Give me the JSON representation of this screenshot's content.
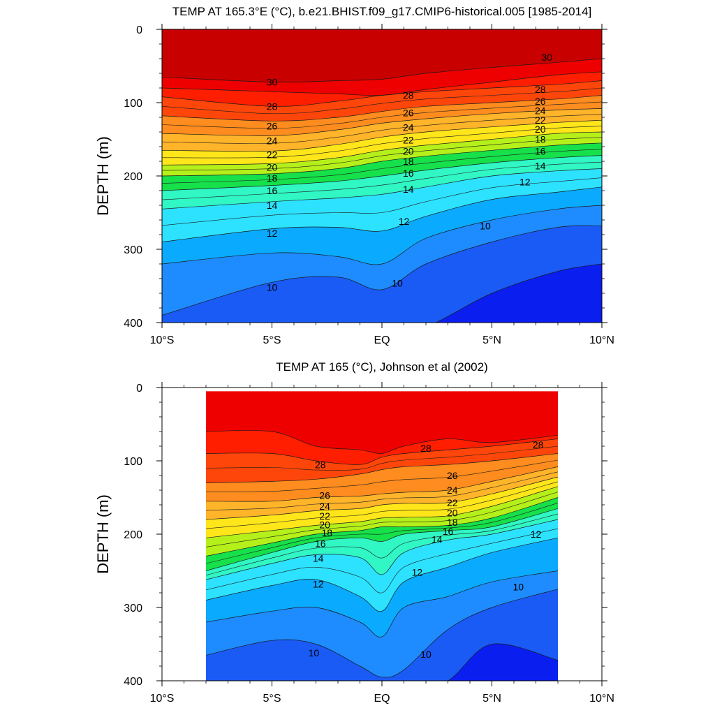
{
  "chart_data": [
    {
      "type": "heatmap",
      "title": "TEMP AT 165.3°E (°C), b.e21.BHIST.f09_g17.CMIP6-historical.005 [1985-2014]",
      "ylabel": "DEPTH (m)",
      "xlabel": "",
      "xlim": [
        -10,
        10
      ],
      "ylim": [
        400,
        0
      ],
      "data_xlim": [
        -10,
        10
      ],
      "data_ylim": [
        0,
        400
      ],
      "x_ticks": [
        "10°S",
        "5°S",
        "EQ",
        "5°N",
        "10°N"
      ],
      "y_ticks": [
        "0",
        "100",
        "200",
        "300",
        "400"
      ],
      "contour_interval": 1,
      "isotherm_depths": {
        "x": [
          -10,
          -5,
          -2,
          0,
          2,
          5,
          8,
          10
        ],
        "levels": [
          {
            "t": 30,
            "z": [
              65,
              72,
              70,
              68,
              60,
              52,
              45,
              40
            ]
          },
          {
            "t": 29,
            "z": [
              80,
              85,
              88,
              90,
              82,
              72,
              62,
              58
            ]
          },
          {
            "t": 28,
            "z": [
              92,
              105,
              98,
              90,
              85,
              80,
              75,
              70
            ]
          },
          {
            "t": 26,
            "z": [
              118,
              125,
              120,
              112,
              105,
              100,
              95,
              90
            ]
          },
          {
            "t": 24,
            "z": [
              142,
              145,
              137,
              128,
              122,
              115,
              110,
              108
            ]
          },
          {
            "t": 22,
            "z": [
              165,
              166,
              157,
              147,
              140,
              133,
              127,
              124
            ]
          },
          {
            "t": 20,
            "z": [
              185,
              183,
              175,
              165,
              158,
              150,
              142,
              140
            ]
          },
          {
            "t": 18,
            "z": [
              200,
              197,
              190,
              180,
              173,
              165,
              158,
              155
            ]
          },
          {
            "t": 16,
            "z": [
              220,
              213,
              207,
              200,
              192,
              182,
              175,
              172
            ]
          },
          {
            "t": 14,
            "z": [
              245,
              235,
              230,
              225,
              215,
              200,
              193,
              190
            ]
          },
          {
            "t": 12,
            "z": [
              290,
              272,
              270,
              275,
              255,
              232,
              222,
              215
            ]
          },
          {
            "t": 11,
            "z": [
              320,
              305,
              310,
              320,
              285,
              260,
              245,
              240
            ]
          },
          {
            "t": 10,
            "z": [
              390,
              345,
              338,
              355,
              320,
              290,
              270,
              268
            ]
          },
          {
            "t": 9,
            "z": [
              405,
              405,
              405,
              405,
              405,
              360,
              330,
              320
            ]
          }
        ]
      },
      "contour_labels": [
        {
          "text": "30",
          "x": -5,
          "y": 72
        },
        {
          "text": "30",
          "x": 7.5,
          "y": 38
        },
        {
          "text": "28",
          "x": -5,
          "y": 105
        },
        {
          "text": "28",
          "x": 1.2,
          "y": 90
        },
        {
          "text": "28",
          "x": 7.2,
          "y": 82
        },
        {
          "text": "26",
          "x": -5,
          "y": 132
        },
        {
          "text": "26",
          "x": 1.2,
          "y": 114
        },
        {
          "text": "26",
          "x": 7.2,
          "y": 98
        },
        {
          "text": "24",
          "x": -5,
          "y": 152
        },
        {
          "text": "24",
          "x": 1.2,
          "y": 134
        },
        {
          "text": "24",
          "x": 7.2,
          "y": 111
        },
        {
          "text": "22",
          "x": -5,
          "y": 171
        },
        {
          "text": "22",
          "x": 1.2,
          "y": 151
        },
        {
          "text": "22",
          "x": 7.2,
          "y": 124
        },
        {
          "text": "20",
          "x": -5,
          "y": 188
        },
        {
          "text": "20",
          "x": 1.2,
          "y": 166
        },
        {
          "text": "20",
          "x": 7.2,
          "y": 136
        },
        {
          "text": "18",
          "x": -5,
          "y": 203
        },
        {
          "text": "18",
          "x": 1.2,
          "y": 180
        },
        {
          "text": "18",
          "x": 7.2,
          "y": 150
        },
        {
          "text": "16",
          "x": -5,
          "y": 220
        },
        {
          "text": "16",
          "x": 1.2,
          "y": 196
        },
        {
          "text": "16",
          "x": 7.2,
          "y": 166
        },
        {
          "text": "14",
          "x": -5,
          "y": 240
        },
        {
          "text": "14",
          "x": 1.2,
          "y": 218
        },
        {
          "text": "14",
          "x": 7.2,
          "y": 186
        },
        {
          "text": "12",
          "x": -5,
          "y": 278
        },
        {
          "text": "12",
          "x": 1.0,
          "y": 262
        },
        {
          "text": "12",
          "x": 6.5,
          "y": 208
        },
        {
          "text": "10",
          "x": -5,
          "y": 352
        },
        {
          "text": "10",
          "x": 0.7,
          "y": 346
        },
        {
          "text": "10",
          "x": 4.7,
          "y": 268
        }
      ],
      "color_scale": [
        {
          "t": 8.5,
          "color": "#6a14d8"
        },
        {
          "t": 9,
          "color": "#0a1ef0"
        },
        {
          "t": 10,
          "color": "#1a5af5"
        },
        {
          "t": 11,
          "color": "#1e8cff"
        },
        {
          "t": 12,
          "color": "#0aabff"
        },
        {
          "t": 13,
          "color": "#1ec8ff"
        },
        {
          "t": 14,
          "color": "#2de2ff"
        },
        {
          "t": 15,
          "color": "#30f0e8"
        },
        {
          "t": 16,
          "color": "#30f7c4"
        },
        {
          "t": 17,
          "color": "#2ef28a"
        },
        {
          "t": 18,
          "color": "#16e04a"
        },
        {
          "t": 19,
          "color": "#5ae61a"
        },
        {
          "t": 20,
          "color": "#b6f01a"
        },
        {
          "t": 21,
          "color": "#ffff00"
        },
        {
          "t": 22,
          "color": "#ffe61a"
        },
        {
          "t": 23,
          "color": "#ffcc28"
        },
        {
          "t": 24,
          "color": "#ffb42a"
        },
        {
          "t": 25,
          "color": "#ffa028"
        },
        {
          "t": 26,
          "color": "#ff8c1e"
        },
        {
          "t": 27,
          "color": "#ff6e14"
        },
        {
          "t": 28,
          "color": "#ff460a"
        },
        {
          "t": 29,
          "color": "#ff1e00"
        },
        {
          "t": 30,
          "color": "#ee0000"
        },
        {
          "t": 31,
          "color": "#c80000"
        }
      ]
    },
    {
      "type": "heatmap",
      "title": "TEMP AT 165 (°C), Johnson et al (2002)",
      "ylabel": "DEPTH (m)",
      "xlabel": "",
      "xlim": [
        -10,
        10
      ],
      "ylim": [
        400,
        0
      ],
      "data_xlim": [
        -8,
        8
      ],
      "data_ylim": [
        5,
        400
      ],
      "x_ticks": [
        "10°S",
        "5°S",
        "EQ",
        "5°N",
        "10°N"
      ],
      "y_ticks": [
        "0",
        "100",
        "200",
        "300",
        "400"
      ],
      "contour_interval": 1,
      "isotherm_depths": {
        "x": [
          -8,
          -5,
          -3,
          -1,
          0,
          1,
          3,
          5,
          8
        ],
        "levels": [
          {
            "t": 29,
            "z": [
              60,
              60,
              80,
              85,
              90,
              80,
              70,
              75,
              65
            ]
          },
          {
            "t": 28,
            "z": [
              90,
              90,
              100,
              105,
              95,
              90,
              85,
              80,
              70
            ]
          },
          {
            "t": 26,
            "z": [
              130,
              128,
              125,
              118,
              112,
              108,
              105,
              100,
              90
            ]
          },
          {
            "t": 24,
            "z": [
              155,
              155,
              150,
              148,
              145,
              143,
              140,
              128,
              108
            ]
          },
          {
            "t": 22,
            "z": [
              180,
              174,
              168,
              165,
              160,
              158,
              157,
              145,
              122
            ]
          },
          {
            "t": 20,
            "z": [
              205,
              195,
              188,
              183,
              178,
              177,
              175,
              162,
              135
            ]
          },
          {
            "t": 18,
            "z": [
              230,
              212,
              200,
              195,
              190,
              190,
              188,
              178,
              150
            ]
          },
          {
            "t": 16,
            "z": [
              250,
              225,
              210,
              205,
              210,
              200,
              195,
              190,
              165
            ]
          },
          {
            "t": 14,
            "z": [
              262,
              240,
              228,
              232,
              255,
              225,
              208,
              200,
              180
            ]
          },
          {
            "t": 12,
            "z": [
              290,
              270,
              262,
              285,
              305,
              265,
              245,
              225,
              205
            ]
          },
          {
            "t": 11,
            "z": [
              320,
              305,
              300,
              320,
              340,
              300,
              285,
              265,
              250
            ]
          },
          {
            "t": 10,
            "z": [
              365,
              345,
              350,
              380,
              395,
              385,
              330,
              300,
              275
            ]
          },
          {
            "t": 9,
            "z": [
              420,
              420,
              420,
              420,
              420,
              420,
              400,
              350,
              372
            ]
          }
        ]
      },
      "contour_labels": [
        {
          "text": "28",
          "x": -2.8,
          "y": 105
        },
        {
          "text": "28",
          "x": 2.0,
          "y": 83
        },
        {
          "text": "28",
          "x": 7.1,
          "y": 78
        },
        {
          "text": "26",
          "x": -2.6,
          "y": 147
        },
        {
          "text": "26",
          "x": 3.2,
          "y": 120
        },
        {
          "text": "24",
          "x": -2.6,
          "y": 162
        },
        {
          "text": "24",
          "x": 3.2,
          "y": 140
        },
        {
          "text": "22",
          "x": -2.6,
          "y": 175
        },
        {
          "text": "22",
          "x": 3.2,
          "y": 157
        },
        {
          "text": "20",
          "x": -2.6,
          "y": 187
        },
        {
          "text": "20",
          "x": 3.2,
          "y": 171
        },
        {
          "text": "18",
          "x": -2.5,
          "y": 198
        },
        {
          "text": "18",
          "x": 3.2,
          "y": 184
        },
        {
          "text": "16",
          "x": -2.8,
          "y": 213
        },
        {
          "text": "16",
          "x": 3.0,
          "y": 196
        },
        {
          "text": "14",
          "x": -2.9,
          "y": 233
        },
        {
          "text": "14",
          "x": 2.5,
          "y": 207
        },
        {
          "text": "12",
          "x": -2.9,
          "y": 268
        },
        {
          "text": "12",
          "x": 1.6,
          "y": 252
        },
        {
          "text": "12",
          "x": 7.0,
          "y": 200
        },
        {
          "text": "10",
          "x": -3.1,
          "y": 362
        },
        {
          "text": "10",
          "x": 2.0,
          "y": 364
        },
        {
          "text": "10",
          "x": 6.2,
          "y": 272
        }
      ]
    }
  ]
}
